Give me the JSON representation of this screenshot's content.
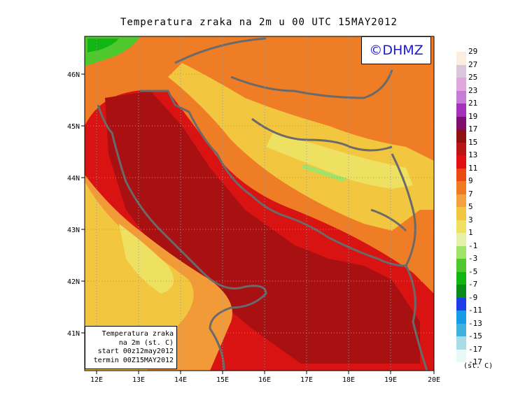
{
  "title": "Temperatura zraka na 2m u 00 UTC 15MAY2012",
  "logo": "©DHMZ",
  "info": {
    "line1": "Temperatura zraka",
    "line2": "na 2m (st. C)",
    "line3": "start 00z12may2012",
    "line4": "termin 00Z15MAY2012"
  },
  "axes": {
    "x_ticks": [
      "12E",
      "13E",
      "14E",
      "15E",
      "16E",
      "17E",
      "18E",
      "19E",
      "20E"
    ],
    "y_ticks": [
      "46N",
      "45N",
      "44N",
      "43N",
      "42N",
      "41N"
    ]
  },
  "legend": {
    "unit": "(st. C)",
    "labels": [
      "29",
      "27",
      "25",
      "23",
      "21",
      "19",
      "17",
      "15",
      "13",
      "11",
      "9",
      "7",
      "5",
      "3",
      "1",
      "-1",
      "-3",
      "-5",
      "-7",
      "-9",
      "-11",
      "-13",
      "-15",
      "-17"
    ],
    "colors": [
      "#fbeee0",
      "#dcc6dc",
      "#dea8dc",
      "#c77ad6",
      "#a233b8",
      "#7e0f6c",
      "#8e1010",
      "#b81515",
      "#e01010",
      "#ea4a12",
      "#f07a20",
      "#f2a040",
      "#f3c640",
      "#eee060",
      "#e3f1a6",
      "#9fe36a",
      "#4fc82e",
      "#11b514",
      "#0b8a1a",
      "#1f3de6",
      "#169be6",
      "#3eb1dc",
      "#a8dce6",
      "#e7fafa"
    ],
    "low_label": "-17"
  },
  "chart_data": {
    "type": "heatmap",
    "title": "Temperatura zraka na 2m u 00 UTC 15MAY2012",
    "xlabel": "",
    "ylabel": "",
    "xlim": [
      11.8,
      20.0
    ],
    "ylim": [
      40.25,
      46.7
    ],
    "units": "st. C"
  }
}
